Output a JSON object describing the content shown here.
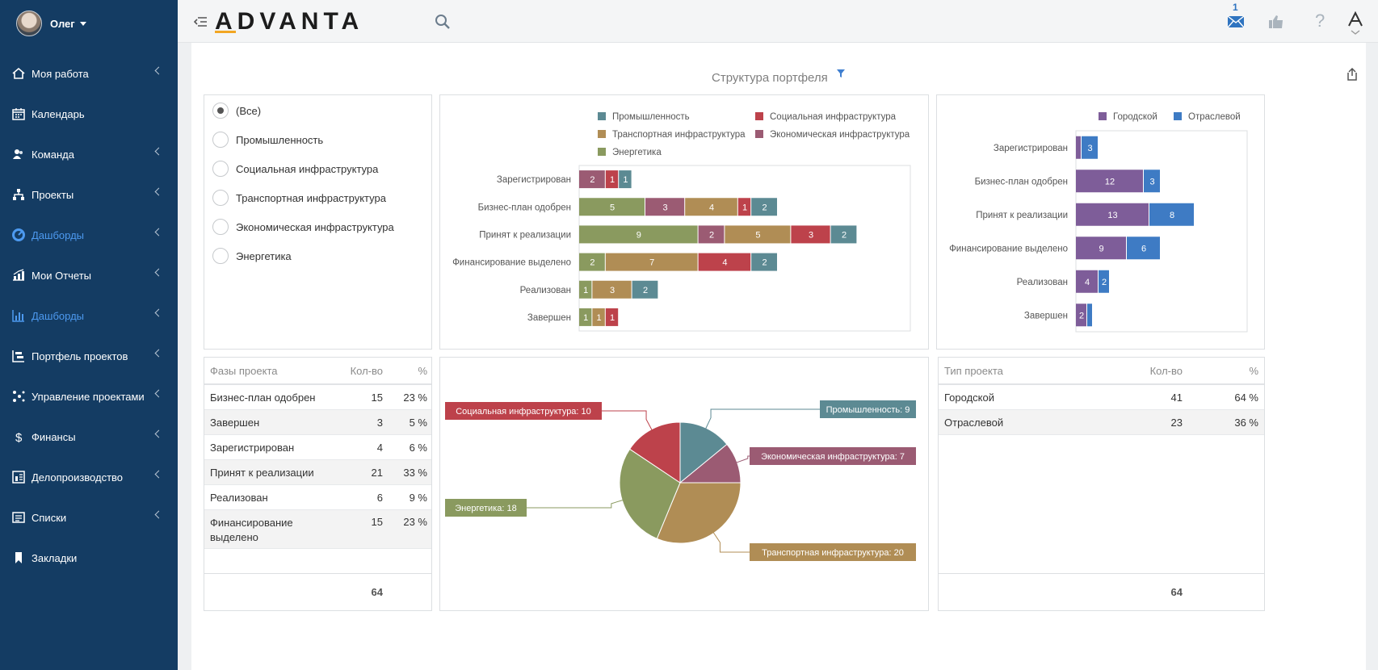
{
  "user": {
    "name": "Олег"
  },
  "sidebar": {
    "items": [
      {
        "label": "Моя работа",
        "icon": "home-icon",
        "chevron": true,
        "active": false
      },
      {
        "label": "Календарь",
        "icon": "calendar-icon",
        "chevron": false,
        "active": false
      },
      {
        "label": "Команда",
        "icon": "team-icon",
        "chevron": true,
        "active": false
      },
      {
        "label": "Проекты",
        "icon": "projects-icon",
        "chevron": true,
        "active": false
      },
      {
        "label": "Дашборды",
        "icon": "dashboard-gauge-icon",
        "chevron": true,
        "active": true
      },
      {
        "label": "Мои Отчеты",
        "icon": "reports-icon",
        "chevron": true,
        "active": false
      },
      {
        "label": "Дашборды",
        "icon": "bar-chart-icon",
        "chevron": true,
        "active": true
      },
      {
        "label": "Портфель проектов",
        "icon": "portfolio-icon",
        "chevron": true,
        "active": false
      },
      {
        "label": "Управление проектами",
        "icon": "project-management-icon",
        "chevron": true,
        "active": false
      },
      {
        "label": "Финансы",
        "icon": "dollar-icon",
        "chevron": true,
        "active": false
      },
      {
        "label": "Делопроизводство",
        "icon": "office-icon",
        "chevron": true,
        "active": false
      },
      {
        "label": "Списки",
        "icon": "list-icon",
        "chevron": true,
        "active": false
      },
      {
        "label": "Закладки",
        "icon": "bookmark-icon",
        "chevron": false,
        "active": false
      }
    ]
  },
  "header": {
    "logo": "ADVANTA",
    "mail_count": "1"
  },
  "page": {
    "title": "Структура портфеля"
  },
  "filter": {
    "options": [
      {
        "label": "(Все)",
        "selected": true
      },
      {
        "label": "Промышленность",
        "selected": false
      },
      {
        "label": "Социальная инфраструктура",
        "selected": false
      },
      {
        "label": "Транспортная инфраструктура",
        "selected": false
      },
      {
        "label": "Экономическая инфраструктура",
        "selected": false
      },
      {
        "label": "Энергетика",
        "selected": false
      }
    ]
  },
  "phase_table": {
    "headers": [
      "Фазы проекта",
      "Кол-во",
      "%"
    ],
    "rows": [
      [
        "Бизнес-план одобрен",
        "15",
        "23 %"
      ],
      [
        "Завершен",
        "3",
        "5 %"
      ],
      [
        "Зарегистрирован",
        "4",
        "6 %"
      ],
      [
        "Принят к реализации",
        "21",
        "33 %"
      ],
      [
        "Реализован",
        "6",
        "9 %"
      ],
      [
        "Финансирование выделено",
        "15",
        "23 %"
      ]
    ],
    "total": "64"
  },
  "type_table": {
    "headers": [
      "Тип проекта",
      "Кол-во",
      "%"
    ],
    "rows": [
      [
        "Городской",
        "41",
        "64 %"
      ],
      [
        "Отраслевой",
        "23",
        "36 %"
      ]
    ],
    "total": "64"
  },
  "chart_data": [
    {
      "type": "bar",
      "orientation": "horizontal",
      "stacked": true,
      "categories": [
        "Зарегистрирован",
        "Бизнес-план одобрен",
        "Принят к реализации",
        "Финансирование выделено",
        "Реализован",
        "Завершен"
      ],
      "series": [
        {
          "name": "Энергетика",
          "color": "#8a9a5f",
          "values": [
            0,
            5,
            9,
            2,
            1,
            1
          ]
        },
        {
          "name": "Экономическая инфраструктура",
          "color": "#9b5b73",
          "values": [
            2,
            3,
            2,
            0,
            0,
            0
          ]
        },
        {
          "name": "Транспортная инфраструктура",
          "color": "#b08d55",
          "values": [
            0,
            4,
            5,
            7,
            3,
            1
          ]
        },
        {
          "name": "Социальная инфраструктура",
          "color": "#bd424b",
          "values": [
            1,
            1,
            3,
            4,
            0,
            1
          ]
        },
        {
          "name": "Промышленность",
          "color": "#5c8a93",
          "values": [
            1,
            2,
            2,
            2,
            2,
            0
          ]
        }
      ],
      "legend_order": [
        "Промышленность",
        "Социальная инфраструктура",
        "Транспортная инфраструктура",
        "Экономическая инфраструктура",
        "Энергетика"
      ],
      "legend": "top",
      "title": "",
      "xlabel": "",
      "ylabel": ""
    },
    {
      "type": "bar",
      "orientation": "horizontal",
      "stacked": true,
      "categories": [
        "Зарегистрирован",
        "Бизнес-план одобрен",
        "Принят к реализации",
        "Финансирование выделено",
        "Реализован",
        "Завершен"
      ],
      "series": [
        {
          "name": "Городской",
          "color": "#7e5d99",
          "values": [
            1,
            12,
            13,
            9,
            4,
            2
          ]
        },
        {
          "name": "Отраслевой",
          "color": "#3e7bc4",
          "values": [
            3,
            3,
            8,
            6,
            2,
            1
          ]
        }
      ],
      "legend": "top-right",
      "title": "",
      "xlabel": "",
      "ylabel": ""
    },
    {
      "type": "pie",
      "slices": [
        {
          "label": "Промышленность: 9",
          "value": 9,
          "color": "#5c8a93"
        },
        {
          "label": "Экономическая инфраструктура: 7",
          "value": 7,
          "color": "#9b5b73"
        },
        {
          "label": "Транспортная инфраструктура: 20",
          "value": 20,
          "color": "#b08d55"
        },
        {
          "label": "Энергетика: 18",
          "value": 18,
          "color": "#8a9a5f"
        },
        {
          "label": "Социальная инфраструктура: 10",
          "value": 10,
          "color": "#bd424b"
        }
      ],
      "title": ""
    }
  ]
}
